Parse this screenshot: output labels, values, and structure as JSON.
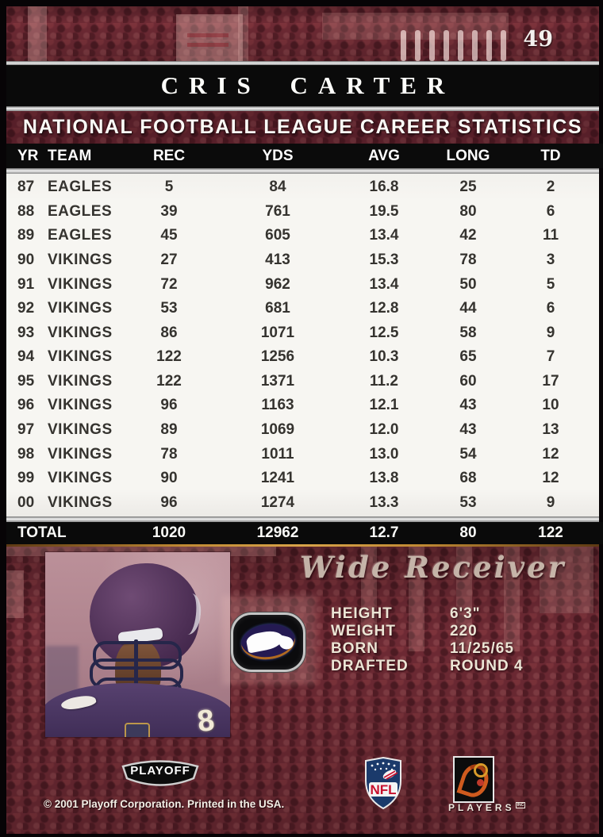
{
  "card": {
    "number": "49",
    "player_name": "CRIS CARTER",
    "stats_title": "NATIONAL FOOTBALL LEAGUE CAREER STATISTICS",
    "position": "Wide Receiver"
  },
  "stats_table": {
    "columns": [
      "YR",
      "TEAM",
      "REC",
      "YDS",
      "AVG",
      "LONG",
      "TD"
    ],
    "rows": [
      [
        "87",
        "EAGLES",
        "5",
        "84",
        "16.8",
        "25",
        "2"
      ],
      [
        "88",
        "EAGLES",
        "39",
        "761",
        "19.5",
        "80",
        "6"
      ],
      [
        "89",
        "EAGLES",
        "45",
        "605",
        "13.4",
        "42",
        "11"
      ],
      [
        "90",
        "VIKINGS",
        "27",
        "413",
        "15.3",
        "78",
        "3"
      ],
      [
        "91",
        "VIKINGS",
        "72",
        "962",
        "13.4",
        "50",
        "5"
      ],
      [
        "92",
        "VIKINGS",
        "53",
        "681",
        "12.8",
        "44",
        "6"
      ],
      [
        "93",
        "VIKINGS",
        "86",
        "1071",
        "12.5",
        "58",
        "9"
      ],
      [
        "94",
        "VIKINGS",
        "122",
        "1256",
        "10.3",
        "65",
        "7"
      ],
      [
        "95",
        "VIKINGS",
        "122",
        "1371",
        "11.2",
        "60",
        "17"
      ],
      [
        "96",
        "VIKINGS",
        "96",
        "1163",
        "12.1",
        "43",
        "10"
      ],
      [
        "97",
        "VIKINGS",
        "89",
        "1069",
        "12.0",
        "43",
        "13"
      ],
      [
        "98",
        "VIKINGS",
        "78",
        "1011",
        "13.0",
        "54",
        "12"
      ],
      [
        "99",
        "VIKINGS",
        "90",
        "1241",
        "13.8",
        "68",
        "12"
      ],
      [
        "00",
        "VIKINGS",
        "96",
        "1274",
        "13.3",
        "53",
        "9"
      ]
    ],
    "total": [
      "TOTAL",
      "1020",
      "12962",
      "12.7",
      "80",
      "122"
    ]
  },
  "bio": {
    "rows": [
      {
        "label": "HEIGHT",
        "value": "6'3\""
      },
      {
        "label": "WEIGHT",
        "value": "220"
      },
      {
        "label": "BORN",
        "value": "11/25/65"
      },
      {
        "label": "DRAFTED",
        "value": "ROUND 4"
      }
    ]
  },
  "photo": {
    "jersey_number": "8"
  },
  "footer": {
    "playoff_logo": "PLAYOFF",
    "copyright": "© 2001 Playoff Corporation. Printed in the USA.",
    "nfl_logo": "NFL",
    "players_logo": "PLAYERS",
    "players_inc": "INC"
  },
  "colors": {
    "leather": "#6e2a34",
    "banner_black": "#0a0a0a",
    "table_bg": "#f6f5f1",
    "table_text": "#35332f",
    "silver": "#d8d8d8",
    "gold_line": "#c08a34",
    "photo_bg": "#b0858f",
    "jersey_purple": "#4a3566",
    "bio_text": "#ece5d5"
  }
}
